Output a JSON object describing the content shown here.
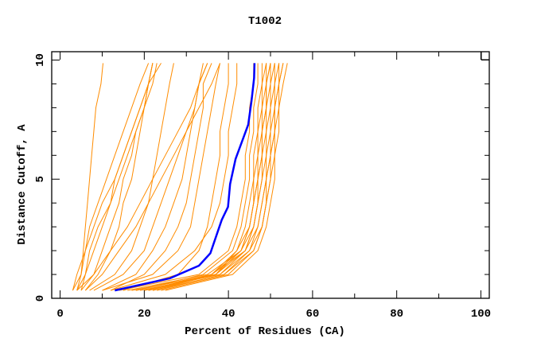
{
  "chart_data": {
    "type": "line",
    "title": "T1002",
    "xlabel": "Percent of Residues (CA)",
    "ylabel": "Distance Cutoff, A",
    "xlim": [
      -2,
      102
    ],
    "ylim": [
      0,
      10.35
    ],
    "x_ticks": [
      "0",
      "20",
      "40",
      "60",
      "80",
      "100"
    ],
    "y_ticks": [
      "0",
      "5",
      "10"
    ],
    "grid": false,
    "colors": {
      "models": "#ff8c00",
      "highlight": "#0000ff",
      "axes": "#000000"
    },
    "y_levels": [
      0.33,
      1,
      2,
      3,
      4,
      5,
      6,
      7,
      8,
      9,
      9.87
    ],
    "model_curves_x": [
      [
        4,
        5,
        5.5,
        6,
        6.5,
        7,
        7.5,
        8,
        8.5,
        9.7,
        10.2
      ],
      [
        3,
        5,
        6,
        7,
        9,
        11,
        13,
        15,
        17,
        19,
        21
      ],
      [
        4,
        6,
        8,
        10,
        12,
        13,
        15,
        17,
        19,
        21,
        22
      ],
      [
        5,
        6,
        7,
        9,
        12,
        14,
        16,
        18,
        20,
        22,
        23
      ],
      [
        3,
        4,
        6,
        8,
        10,
        13,
        15,
        17,
        19,
        21,
        24
      ],
      [
        5,
        8,
        10,
        12,
        14,
        15,
        17,
        18,
        20,
        21,
        22
      ],
      [
        6,
        9,
        12,
        14,
        15,
        17,
        18,
        19,
        20,
        21,
        22
      ],
      [
        7,
        13,
        17,
        19,
        21,
        22,
        23,
        24,
        25,
        26,
        27
      ],
      [
        8,
        15,
        20,
        22,
        24,
        26,
        28,
        30,
        32,
        33,
        34
      ],
      [
        10,
        18,
        22,
        25,
        27,
        29,
        30,
        31,
        32,
        33,
        35
      ],
      [
        4,
        8,
        12,
        16,
        19,
        22,
        25,
        28,
        31,
        33,
        35
      ],
      [
        12,
        20,
        25,
        28,
        30,
        31,
        32,
        33,
        34,
        34,
        36
      ],
      [
        10,
        22,
        28,
        31,
        32,
        33,
        34,
        35,
        36,
        37,
        38
      ],
      [
        6,
        10,
        14,
        18,
        21,
        24,
        27,
        30,
        33,
        36,
        38
      ],
      [
        15,
        28,
        33,
        35,
        36,
        37,
        38,
        38,
        39,
        40,
        40
      ],
      [
        12,
        25,
        32,
        36,
        38,
        39,
        40,
        40,
        41,
        42,
        42
      ],
      [
        18,
        34,
        41,
        43,
        44,
        45,
        45,
        46,
        46,
        47,
        47
      ],
      [
        20,
        36,
        42,
        44,
        45,
        46,
        46,
        47,
        47,
        48,
        48
      ],
      [
        16,
        35,
        43,
        45,
        46,
        47,
        47,
        48,
        48,
        49,
        49
      ],
      [
        22,
        37,
        42,
        45,
        46,
        47,
        48,
        48,
        49,
        49,
        50
      ],
      [
        19,
        38,
        44,
        46,
        47,
        48,
        48,
        49,
        49,
        50,
        50
      ],
      [
        21,
        36,
        43,
        46,
        47,
        48,
        49,
        49,
        50,
        50,
        51
      ],
      [
        23,
        39,
        45,
        47,
        48,
        49,
        49,
        50,
        50,
        51,
        51
      ],
      [
        17,
        37,
        44,
        47,
        48,
        49,
        50,
        50,
        51,
        51,
        52
      ],
      [
        24,
        40,
        46,
        48,
        49,
        50,
        50,
        51,
        51,
        52,
        52
      ],
      [
        20,
        38,
        45,
        48,
        49,
        50,
        51,
        51,
        52,
        52,
        53
      ],
      [
        25,
        41,
        47,
        49,
        50,
        51,
        51,
        52,
        52,
        53,
        54
      ],
      [
        22,
        39,
        46,
        48,
        49,
        49,
        50,
        51,
        51,
        52,
        53
      ],
      [
        18,
        36,
        44,
        46,
        47,
        47,
        48,
        48,
        49,
        49,
        50
      ],
      [
        21,
        37,
        43,
        45,
        46,
        46,
        47,
        47,
        48,
        48,
        49
      ],
      [
        14,
        33,
        40,
        42,
        43,
        44,
        44,
        45,
        45,
        46,
        46
      ]
    ],
    "highlight_curve": [
      [
        13.0,
        0.33
      ],
      [
        26.1,
        0.84
      ],
      [
        33.0,
        1.37
      ],
      [
        35.7,
        1.89
      ],
      [
        38.4,
        3.29
      ],
      [
        39.9,
        3.84
      ],
      [
        40.4,
        4.79
      ],
      [
        41.7,
        5.85
      ],
      [
        44.7,
        7.29
      ],
      [
        45.5,
        8.3
      ],
      [
        46.1,
        9.25
      ],
      [
        46.2,
        9.87
      ]
    ]
  }
}
